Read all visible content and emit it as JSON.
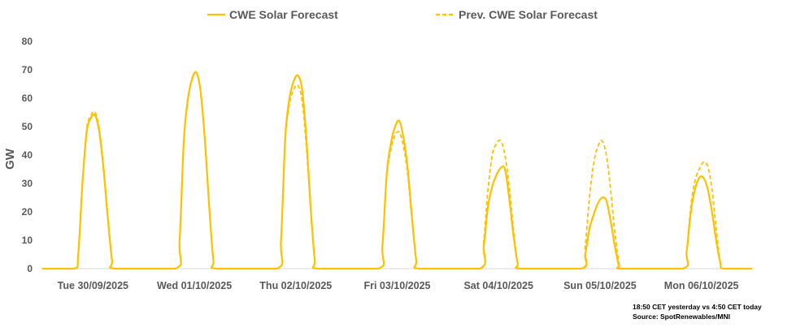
{
  "chart_data": {
    "type": "line",
    "title": "",
    "xlabel": "",
    "ylabel": "GW",
    "ylim": [
      0,
      80
    ],
    "yticks": [
      0,
      10,
      20,
      30,
      40,
      50,
      60,
      70,
      80
    ],
    "x_unit": "hours since Tue 30/09/2025 00:00",
    "xlim": [
      0,
      168
    ],
    "categories": [
      "Tue 30/09/2025",
      "Wed 01/10/2025",
      "Thu 02/10/2025",
      "Fri 03/10/2025",
      "Sat 04/10/2025",
      "Sun 05/10/2025",
      "Mon 06/10/2025"
    ],
    "legend_position": "top",
    "colors": {
      "line": "#FFC000"
    },
    "series": [
      {
        "name": "CWE Solar Forecast",
        "style": "solid",
        "days": [
          {
            "day": 0,
            "points": [
              [
                7.5,
                0
              ],
              [
                8.5,
                5
              ],
              [
                9.5,
                30
              ],
              [
                10.5,
                48
              ],
              [
                11.5,
                53
              ],
              [
                12.5,
                54
              ],
              [
                13.5,
                48
              ],
              [
                14.5,
                35
              ],
              [
                15.5,
                18
              ],
              [
                16.5,
                3
              ],
              [
                17.3,
                0
              ]
            ]
          },
          {
            "day": 1,
            "points": [
              [
                7.5,
                0
              ],
              [
                8.5,
                10
              ],
              [
                9.5,
                45
              ],
              [
                10.5,
                60
              ],
              [
                11.5,
                67
              ],
              [
                12.5,
                69
              ],
              [
                13.5,
                62
              ],
              [
                14.5,
                45
              ],
              [
                15.5,
                22
              ],
              [
                16.5,
                3
              ],
              [
                17.3,
                0
              ]
            ]
          },
          {
            "day": 2,
            "points": [
              [
                7.5,
                0
              ],
              [
                8.5,
                10
              ],
              [
                9.5,
                46
              ],
              [
                10.5,
                60
              ],
              [
                11.5,
                66
              ],
              [
                12.5,
                68
              ],
              [
                13.5,
                63
              ],
              [
                14.5,
                46
              ],
              [
                15.5,
                22
              ],
              [
                16.5,
                3
              ],
              [
                17.3,
                0
              ]
            ]
          },
          {
            "day": 3,
            "points": [
              [
                7.5,
                0
              ],
              [
                8.5,
                8
              ],
              [
                9.5,
                33
              ],
              [
                10.5,
                44
              ],
              [
                11.5,
                50
              ],
              [
                12.5,
                52
              ],
              [
                13.5,
                46
              ],
              [
                14.5,
                35
              ],
              [
                15.5,
                18
              ],
              [
                16.5,
                3
              ],
              [
                17.3,
                0
              ]
            ]
          },
          {
            "day": 4,
            "points": [
              [
                7.5,
                0
              ],
              [
                8.5,
                8
              ],
              [
                9.5,
                22
              ],
              [
                10.5,
                29
              ],
              [
                11.5,
                33
              ],
              [
                12.5,
                35.5
              ],
              [
                13.5,
                35
              ],
              [
                14.5,
                25
              ],
              [
                15.5,
                12
              ],
              [
                16.5,
                2
              ],
              [
                17.3,
                0
              ]
            ]
          },
          {
            "day": 5,
            "points": [
              [
                7.5,
                0
              ],
              [
                8.5,
                5
              ],
              [
                9.5,
                14
              ],
              [
                10.5,
                19
              ],
              [
                11.5,
                23
              ],
              [
                12.5,
                25
              ],
              [
                13.5,
                24
              ],
              [
                14.5,
                17
              ],
              [
                15.5,
                8
              ],
              [
                16.5,
                1
              ],
              [
                17.3,
                0
              ]
            ]
          },
          {
            "day": 6,
            "points": [
              [
                7.5,
                0
              ],
              [
                8.5,
                6
              ],
              [
                9.5,
                20
              ],
              [
                10.5,
                28
              ],
              [
                11.5,
                32
              ],
              [
                12.5,
                32
              ],
              [
                13.5,
                28
              ],
              [
                14.5,
                20
              ],
              [
                15.5,
                10
              ],
              [
                16.5,
                2
              ],
              [
                17.3,
                0
              ]
            ]
          }
        ]
      },
      {
        "name": "Prev. CWE Solar Forecast",
        "style": "dashed",
        "days": [
          {
            "day": 0,
            "points": [
              [
                7.5,
                0
              ],
              [
                8.5,
                5
              ],
              [
                9.5,
                30
              ],
              [
                10.5,
                49
              ],
              [
                11.5,
                54
              ],
              [
                12.5,
                55
              ],
              [
                13.5,
                49
              ],
              [
                14.5,
                36
              ],
              [
                15.5,
                19
              ],
              [
                16.5,
                3
              ],
              [
                17.3,
                0
              ]
            ]
          },
          {
            "day": 1,
            "points": [
              [
                7.5,
                0
              ],
              [
                8.5,
                10
              ],
              [
                9.5,
                45
              ],
              [
                10.5,
                60
              ],
              [
                11.5,
                67
              ],
              [
                12.5,
                69
              ],
              [
                13.5,
                62
              ],
              [
                14.5,
                45
              ],
              [
                15.5,
                22
              ],
              [
                16.5,
                3
              ],
              [
                17.3,
                0
              ]
            ]
          },
          {
            "day": 2,
            "points": [
              [
                7.5,
                0
              ],
              [
                8.5,
                10
              ],
              [
                9.5,
                45
              ],
              [
                10.5,
                58
              ],
              [
                11.5,
                63
              ],
              [
                12.5,
                64.5
              ],
              [
                13.5,
                59
              ],
              [
                14.5,
                43
              ],
              [
                15.5,
                21
              ],
              [
                16.5,
                3
              ],
              [
                17.3,
                0
              ]
            ]
          },
          {
            "day": 3,
            "points": [
              [
                7.5,
                0
              ],
              [
                8.5,
                8
              ],
              [
                9.5,
                32
              ],
              [
                10.5,
                42
              ],
              [
                11.5,
                47
              ],
              [
                12.5,
                48
              ],
              [
                13.5,
                43
              ],
              [
                14.5,
                33
              ],
              [
                15.5,
                17
              ],
              [
                16.5,
                3
              ],
              [
                17.3,
                0
              ]
            ]
          },
          {
            "day": 4,
            "points": [
              [
                7.5,
                0
              ],
              [
                8.5,
                10
              ],
              [
                9.5,
                28
              ],
              [
                10.5,
                40
              ],
              [
                11.5,
                44
              ],
              [
                12.5,
                45
              ],
              [
                13.5,
                40
              ],
              [
                14.5,
                29
              ],
              [
                15.5,
                14
              ],
              [
                16.5,
                2
              ],
              [
                17.3,
                0
              ]
            ]
          },
          {
            "day": 5,
            "points": [
              [
                7.5,
                0
              ],
              [
                8.5,
                8
              ],
              [
                9.5,
                25
              ],
              [
                10.5,
                37
              ],
              [
                11.5,
                43
              ],
              [
                12.5,
                45
              ],
              [
                13.5,
                40
              ],
              [
                14.5,
                28
              ],
              [
                15.5,
                13
              ],
              [
                16.5,
                2
              ],
              [
                17.3,
                0
              ]
            ]
          },
          {
            "day": 6,
            "points": [
              [
                7.5,
                0
              ],
              [
                8.5,
                6
              ],
              [
                9.5,
                22
              ],
              [
                10.5,
                31
              ],
              [
                11.5,
                35
              ],
              [
                12.5,
                37.5
              ],
              [
                13.5,
                36
              ],
              [
                14.5,
                28
              ],
              [
                15.5,
                14
              ],
              [
                16.5,
                2
              ],
              [
                17.3,
                0
              ]
            ]
          }
        ]
      }
    ]
  },
  "footnote": {
    "line1": "18:50 CET yesterday vs  4:50 CET today",
    "line2": "Source: SpotRenewables/MNI"
  }
}
